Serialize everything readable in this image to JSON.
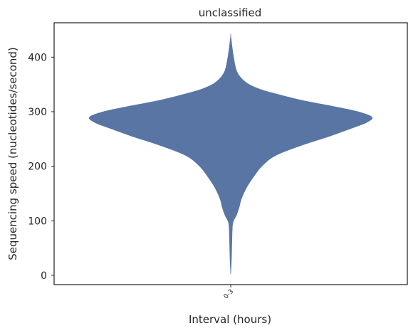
{
  "chart_data": {
    "type": "violin",
    "title": "unclassified",
    "xlabel": "Interval (hours)",
    "ylabel": "Sequencing speed (nucleotides/second)",
    "categories": [
      "0-3"
    ],
    "yticks": [
      0,
      100,
      200,
      300,
      400
    ],
    "ylim": [
      -17,
      463
    ],
    "grid": false,
    "color": "#5875a4",
    "violins": [
      {
        "category": "0-3",
        "min": 2,
        "max": 440,
        "density_profile": [
          {
            "y": 2,
            "w": 0.0
          },
          {
            "y": 30,
            "w": 0.005
          },
          {
            "y": 60,
            "w": 0.008
          },
          {
            "y": 90,
            "w": 0.012
          },
          {
            "y": 100,
            "w": 0.02
          },
          {
            "y": 110,
            "w": 0.04
          },
          {
            "y": 125,
            "w": 0.06
          },
          {
            "y": 140,
            "w": 0.075
          },
          {
            "y": 160,
            "w": 0.11
          },
          {
            "y": 180,
            "w": 0.16
          },
          {
            "y": 200,
            "w": 0.22
          },
          {
            "y": 220,
            "w": 0.32
          },
          {
            "y": 240,
            "w": 0.52
          },
          {
            "y": 255,
            "w": 0.7
          },
          {
            "y": 270,
            "w": 0.86
          },
          {
            "y": 280,
            "w": 0.96
          },
          {
            "y": 290,
            "w": 1.0
          },
          {
            "y": 300,
            "w": 0.9
          },
          {
            "y": 310,
            "w": 0.72
          },
          {
            "y": 320,
            "w": 0.52
          },
          {
            "y": 330,
            "w": 0.36
          },
          {
            "y": 340,
            "w": 0.22
          },
          {
            "y": 350,
            "w": 0.13
          },
          {
            "y": 360,
            "w": 0.08
          },
          {
            "y": 370,
            "w": 0.05
          },
          {
            "y": 380,
            "w": 0.035
          },
          {
            "y": 400,
            "w": 0.02
          },
          {
            "y": 420,
            "w": 0.009
          },
          {
            "y": 440,
            "w": 0.0
          }
        ]
      }
    ]
  }
}
